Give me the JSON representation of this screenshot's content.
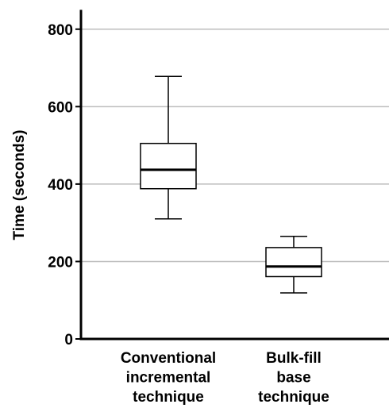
{
  "chart_data": {
    "type": "boxplot",
    "ylabel": "Time (seconds)",
    "xlabel": "",
    "ylim": [
      0,
      850
    ],
    "yticks": [
      0,
      200,
      400,
      600,
      800
    ],
    "grid": "horizontal",
    "categories": [
      {
        "lines": [
          "Conventional",
          "incremental",
          "technique"
        ]
      },
      {
        "lines": [
          "Bulk-fill",
          "base",
          "technique"
        ]
      }
    ],
    "boxes": [
      {
        "min": 310,
        "q1": 388,
        "median": 437,
        "q3": 505,
        "max": 678
      },
      {
        "min": 119,
        "q1": 161,
        "median": 187,
        "q3": 236,
        "max": 265
      }
    ]
  }
}
